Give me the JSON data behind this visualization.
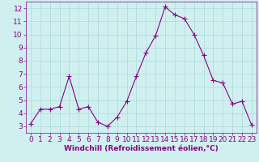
{
  "x": [
    0,
    1,
    2,
    3,
    4,
    5,
    6,
    7,
    8,
    9,
    10,
    11,
    12,
    13,
    14,
    15,
    16,
    17,
    18,
    19,
    20,
    21,
    22,
    23
  ],
  "y": [
    3.2,
    4.3,
    4.3,
    4.5,
    6.8,
    4.3,
    4.5,
    3.3,
    3.0,
    3.7,
    4.9,
    6.8,
    8.6,
    9.9,
    12.1,
    11.5,
    11.2,
    10.0,
    8.4,
    6.5,
    6.3,
    4.7,
    4.9,
    3.1
  ],
  "line_color": "#880088",
  "marker": "+",
  "marker_size": 4,
  "bg_color": "#d0f0f0",
  "grid_color": "#b0dede",
  "xlabel": "Windchill (Refroidissement éolien,°C)",
  "xlim": [
    -0.5,
    23.5
  ],
  "ylim": [
    2.5,
    12.5
  ],
  "yticks": [
    3,
    4,
    5,
    6,
    7,
    8,
    9,
    10,
    11,
    12
  ],
  "xticks": [
    0,
    1,
    2,
    3,
    4,
    5,
    6,
    7,
    8,
    9,
    10,
    11,
    12,
    13,
    14,
    15,
    16,
    17,
    18,
    19,
    20,
    21,
    22,
    23
  ],
  "label_color": "#880088",
  "axis_label_fontsize": 6.5,
  "tick_fontsize": 6.5,
  "linewidth": 0.8,
  "marker_linewidth": 0.8
}
